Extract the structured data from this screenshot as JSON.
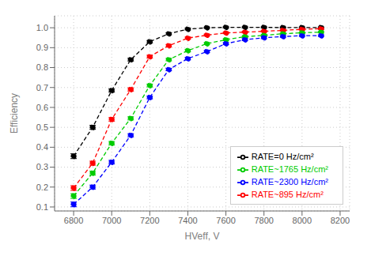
{
  "chart_data": {
    "type": "line",
    "xlabel": "HVeff, V",
    "ylabel": "Efficiency",
    "x": [
      6800,
      6900,
      7000,
      7100,
      7200,
      7300,
      7400,
      7500,
      7600,
      7700,
      7800,
      7900,
      8000,
      8100
    ],
    "series": [
      {
        "name": "RATE=0 Hz/cm²",
        "color": "black",
        "marker": "o",
        "line_style": "dashed",
        "values": [
          0.355,
          0.5,
          0.685,
          0.84,
          0.93,
          0.97,
          0.993,
          1.0,
          1.002,
          1.002,
          1.002,
          1.001,
          1.001,
          1.001
        ],
        "yerr": [
          0.012,
          0.01,
          0.008,
          0.007,
          0.006,
          0.005,
          0.004,
          0.003,
          0.003,
          0.003,
          0.003,
          0.003,
          0.003,
          0.003
        ]
      },
      {
        "name": "RATE~895 Hz/cm²",
        "color": "red",
        "marker": "o",
        "line_style": "dashed",
        "values": [
          0.195,
          0.32,
          0.54,
          0.69,
          0.855,
          0.91,
          0.948,
          0.963,
          0.974,
          0.978,
          0.982,
          0.987,
          0.992,
          0.995
        ],
        "yerr": [
          0.012,
          0.01,
          0.009,
          0.008,
          0.007,
          0.006,
          0.005,
          0.005,
          0.004,
          0.004,
          0.004,
          0.004,
          0.004,
          0.004
        ]
      },
      {
        "name": "RATE~1765 Hz/cm²",
        "color": "#00cc00",
        "marker": "o",
        "line_style": "dashed",
        "values": [
          0.155,
          0.27,
          0.42,
          0.545,
          0.71,
          0.84,
          0.885,
          0.92,
          0.94,
          0.955,
          0.962,
          0.97,
          0.975,
          0.978
        ],
        "yerr": [
          0.012,
          0.01,
          0.009,
          0.008,
          0.007,
          0.006,
          0.006,
          0.005,
          0.005,
          0.005,
          0.004,
          0.004,
          0.004,
          0.004
        ]
      },
      {
        "name": "RATE~2300 Hz/cm²",
        "color": "blue",
        "marker": "o",
        "line_style": "dashed",
        "values": [
          0.113,
          0.2,
          0.325,
          0.46,
          0.65,
          0.79,
          0.845,
          0.88,
          0.92,
          0.94,
          0.95,
          0.956,
          0.96,
          0.96
        ],
        "yerr": [
          0.012,
          0.01,
          0.009,
          0.008,
          0.007,
          0.006,
          0.006,
          0.005,
          0.005,
          0.005,
          0.005,
          0.004,
          0.004,
          0.004
        ]
      }
    ],
    "xlim": [
      6700,
      8250
    ],
    "ylim": [
      0.08,
      1.06
    ],
    "xticks": [
      6800,
      7000,
      7200,
      7400,
      7600,
      7800,
      8000,
      8200
    ],
    "yticks": [
      0.1,
      0.2,
      0.3,
      0.4,
      0.5,
      0.6,
      0.7,
      0.8,
      0.9,
      {
        "value": 1.0,
        "label": "1.0"
      }
    ],
    "grid": true,
    "legend": "lower right"
  }
}
